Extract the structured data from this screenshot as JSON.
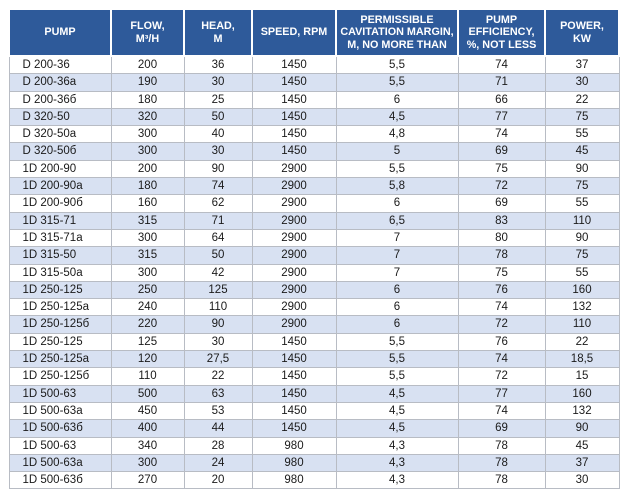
{
  "colors": {
    "header_bg": "#2e5a9a",
    "header_text": "#ffffff",
    "band_bg": "#d8e1f2",
    "row_bg": "#ffffff",
    "grid_line": "#b8bcc4",
    "body_text": "#1a1a1a"
  },
  "table": {
    "columns": [
      {
        "key": "pump",
        "label": "PUMP"
      },
      {
        "key": "flow",
        "label": "FLOW,\nM³/H"
      },
      {
        "key": "head",
        "label": "HEAD,\nM"
      },
      {
        "key": "speed",
        "label": "SPEED, RPM"
      },
      {
        "key": "cavitation-margin",
        "label": "PERMISSIBLE\nCAVITATION MARGIN,\nM, NO MORE THAN"
      },
      {
        "key": "efficiency",
        "label": "PUMP\nEFFICIENCY,\n%, NOT LESS"
      },
      {
        "key": "power",
        "label": "POWER,\nKW"
      }
    ],
    "rows": [
      [
        "D 200-36",
        "200",
        "36",
        "1450",
        "5,5",
        "74",
        "37"
      ],
      [
        "D 200-36a",
        "190",
        "30",
        "1450",
        "5,5",
        "71",
        "30"
      ],
      [
        "D 200-36б",
        "180",
        "25",
        "1450",
        "6",
        "66",
        "22"
      ],
      [
        "D 320-50",
        "320",
        "50",
        "1450",
        "4,5",
        "77",
        "75"
      ],
      [
        "D 320-50a",
        "300",
        "40",
        "1450",
        "4,8",
        "74",
        "55"
      ],
      [
        "D 320-50б",
        "300",
        "30",
        "1450",
        "5",
        "69",
        "45"
      ],
      [
        "1D 200-90",
        "200",
        "90",
        "2900",
        "5,5",
        "75",
        "90"
      ],
      [
        "1D 200-90a",
        "180",
        "74",
        "2900",
        "5,8",
        "72",
        "75"
      ],
      [
        "1D 200-90б",
        "160",
        "62",
        "2900",
        "6",
        "69",
        "55"
      ],
      [
        "1D 315-71",
        "315",
        "71",
        "2900",
        "6,5",
        "83",
        "110"
      ],
      [
        "1D 315-71a",
        "300",
        "64",
        "2900",
        "7",
        "80",
        "90"
      ],
      [
        "1D 315-50",
        "315",
        "50",
        "2900",
        "7",
        "78",
        "75"
      ],
      [
        "1D 315-50a",
        "300",
        "42",
        "2900",
        "7",
        "75",
        "55"
      ],
      [
        "1D 250-125",
        "250",
        "125",
        "2900",
        "6",
        "76",
        "160"
      ],
      [
        "1D 250-125a",
        "240",
        "110",
        "2900",
        "6",
        "74",
        "132"
      ],
      [
        "1D 250-125б",
        "220",
        "90",
        "2900",
        "6",
        "72",
        "110"
      ],
      [
        "1D 250-125",
        "125",
        "30",
        "1450",
        "5,5",
        "76",
        "22"
      ],
      [
        "1D 250-125a",
        "120",
        "27,5",
        "1450",
        "5,5",
        "74",
        "18,5"
      ],
      [
        "1D 250-125б",
        "110",
        "22",
        "1450",
        "5,5",
        "72",
        "15"
      ],
      [
        "1D 500-63",
        "500",
        "63",
        "1450",
        "4,5",
        "77",
        "160"
      ],
      [
        "1D 500-63a",
        "450",
        "53",
        "1450",
        "4,5",
        "74",
        "132"
      ],
      [
        "1D 500-63б",
        "400",
        "44",
        "1450",
        "4,5",
        "69",
        "90"
      ],
      [
        "1D 500-63",
        "340",
        "28",
        "980",
        "4,3",
        "78",
        "45"
      ],
      [
        "1D 500-63a",
        "300",
        "24",
        "980",
        "4,3",
        "78",
        "37"
      ],
      [
        "1D 500-63б",
        "270",
        "20",
        "980",
        "4,3",
        "78",
        "30"
      ]
    ]
  }
}
